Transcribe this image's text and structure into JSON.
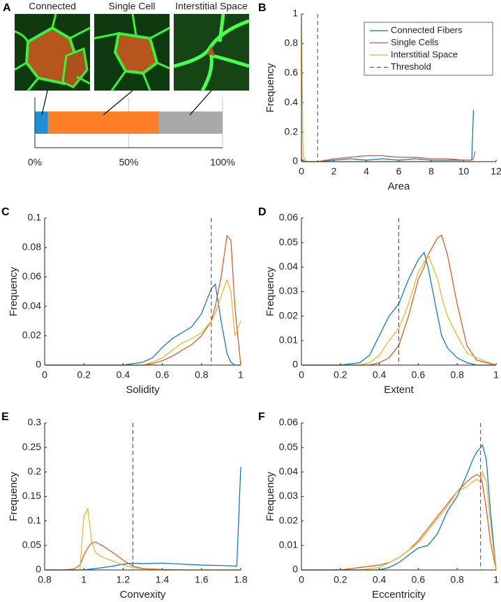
{
  "chart_data": [
    {
      "type": "stacked_bar",
      "panel": "A",
      "categories": [
        "Connected",
        "Single Cell",
        "Interstitial Space"
      ],
      "values": [
        7,
        59,
        34
      ],
      "colors": [
        "#1e90d6",
        "#fd7f28",
        "#a9a9a9"
      ],
      "xlim": [
        0,
        100
      ],
      "xticks": [
        {
          "value": 0,
          "label": "0%"
        },
        {
          "value": 50,
          "label": "50%"
        },
        {
          "value": 100,
          "label": "100%"
        }
      ],
      "grid": true
    },
    {
      "type": "line",
      "panel": "B",
      "xlabel": "Area",
      "ylabel": "Frequency",
      "x": [
        0,
        0.1,
        0.2,
        0.4,
        1,
        2,
        3,
        4,
        5,
        6,
        7,
        8,
        9,
        10,
        10.5,
        10.6,
        10.7
      ],
      "series": [
        {
          "name": "Connected Fibers",
          "color": "#0072bd",
          "values": [
            0.01,
            0.005,
            0,
            0,
            0,
            0.01,
            0.02,
            0.01,
            0.02,
            0.01,
            0.02,
            0.01,
            0.01,
            0.01,
            0.01,
            0.35,
            null
          ]
        },
        {
          "name": "Single Cells",
          "color": "#d95319",
          "values": [
            0.02,
            0.01,
            0,
            0,
            0,
            0.02,
            0.03,
            0.04,
            0.04,
            0.03,
            0.03,
            0.02,
            0.02,
            0.01,
            0.01,
            0.02,
            0.07
          ]
        },
        {
          "name": "Interstitial Space",
          "color": "#edb120",
          "values": [
            0.93,
            0.05,
            0.01,
            0,
            0,
            0,
            0,
            0,
            0,
            0,
            0,
            0,
            0,
            0,
            0,
            0,
            0
          ]
        }
      ],
      "threshold": 1,
      "threshold_label": "Threshold",
      "threshold_color": "#444",
      "xlim": [
        0,
        12
      ],
      "xticks": [
        0,
        2,
        4,
        6,
        8,
        10,
        12
      ],
      "ylim": [
        0,
        1
      ],
      "yticks": [
        0,
        0.2,
        0.4,
        0.6,
        0.8,
        1
      ],
      "legend": "top-right"
    },
    {
      "type": "line",
      "panel": "C",
      "xlabel": "Solidity",
      "ylabel": "Frequency",
      "x": [
        0,
        0.2,
        0.4,
        0.5,
        0.55,
        0.6,
        0.65,
        0.7,
        0.75,
        0.8,
        0.85,
        0.87,
        0.9,
        0.93,
        0.95,
        0.97,
        1
      ],
      "series": [
        {
          "color": "#0072bd",
          "values": [
            0,
            0,
            0,
            0.002,
            0.005,
            0.012,
            0.018,
            0.022,
            0.026,
            0.035,
            0.052,
            0.055,
            0.03,
            0.008,
            0.002,
            0,
            0
          ]
        },
        {
          "color": "#d95319",
          "values": [
            0,
            0,
            0,
            0,
            0.001,
            0.003,
            0.006,
            0.01,
            0.014,
            0.02,
            0.03,
            0.04,
            0.06,
            0.088,
            0.085,
            0.04,
            0
          ]
        },
        {
          "color": "#edb120",
          "values": [
            0,
            0,
            0,
            0,
            0.002,
            0.005,
            0.01,
            0.015,
            0.018,
            0.022,
            0.03,
            0.035,
            0.047,
            0.058,
            0.05,
            0.02,
            0.03
          ]
        }
      ],
      "threshold": 0.85,
      "threshold_color": "#444",
      "xlim": [
        0,
        1
      ],
      "xticks": [
        0,
        0.2,
        0.4,
        0.6,
        0.8,
        1
      ],
      "ylim": [
        0,
        0.1
      ],
      "yticks": [
        0,
        0.02,
        0.04,
        0.06,
        0.08,
        0.1
      ]
    },
    {
      "type": "line",
      "panel": "D",
      "xlabel": "Extent",
      "ylabel": "Frequency",
      "x": [
        0,
        0.2,
        0.3,
        0.35,
        0.4,
        0.45,
        0.5,
        0.55,
        0.6,
        0.63,
        0.65,
        0.7,
        0.72,
        0.75,
        0.8,
        0.85,
        0.9,
        1
      ],
      "series": [
        {
          "color": "#0072bd",
          "values": [
            0,
            0,
            0.001,
            0.004,
            0.012,
            0.02,
            0.025,
            0.035,
            0.043,
            0.046,
            0.04,
            0.02,
            0.012,
            0.007,
            0.003,
            0.001,
            0,
            0
          ]
        },
        {
          "color": "#d95319",
          "values": [
            0,
            0,
            0,
            0,
            0.001,
            0.003,
            0.008,
            0.02,
            0.035,
            0.04,
            0.045,
            0.052,
            0.053,
            0.045,
            0.025,
            0.008,
            0.002,
            0
          ]
        },
        {
          "color": "#edb120",
          "values": [
            0,
            0,
            0,
            0.001,
            0.004,
            0.01,
            0.015,
            0.025,
            0.038,
            0.042,
            0.045,
            0.035,
            0.028,
            0.02,
            0.012,
            0.005,
            0.003,
            0
          ]
        }
      ],
      "threshold": 0.5,
      "threshold_color": "#444",
      "xlim": [
        0,
        1
      ],
      "xticks": [
        0,
        0.2,
        0.4,
        0.6,
        0.8,
        1
      ],
      "ylim": [
        0,
        0.06
      ],
      "yticks": [
        0,
        0.01,
        0.02,
        0.03,
        0.04,
        0.05,
        0.06
      ]
    },
    {
      "type": "line",
      "panel": "E",
      "xlabel": "Convexity",
      "ylabel": "Frequency",
      "x": [
        0.8,
        0.9,
        0.95,
        0.98,
        1.0,
        1.02,
        1.04,
        1.06,
        1.1,
        1.15,
        1.2,
        1.25,
        1.3,
        1.4,
        1.5,
        1.6,
        1.7,
        1.78,
        1.8
      ],
      "series": [
        {
          "color": "#0072bd",
          "values": [
            0,
            0,
            0,
            0,
            0,
            0.001,
            0.002,
            0.003,
            0.005,
            0.008,
            0.012,
            0.014,
            0.013,
            0.014,
            0.012,
            0.01,
            0.009,
            0.008,
            0.21
          ]
        },
        {
          "color": "#d95319",
          "values": [
            0,
            0,
            0.002,
            0.01,
            0.03,
            0.045,
            0.055,
            0.057,
            0.048,
            0.035,
            0.02,
            0.008,
            0.003,
            0.001,
            0,
            0,
            0,
            0,
            0
          ]
        },
        {
          "color": "#edb120",
          "values": [
            0,
            0,
            0,
            0,
            0.11,
            0.125,
            0.06,
            0.035,
            0.025,
            0.018,
            0.01,
            0.005,
            0.002,
            0,
            0,
            0,
            0,
            0,
            0
          ]
        }
      ],
      "threshold": 1.25,
      "threshold_color": "#444",
      "xlim": [
        0.8,
        1.8
      ],
      "xticks": [
        0.8,
        1,
        1.2,
        1.4,
        1.6,
        1.8
      ],
      "ylim": [
        0,
        0.3
      ],
      "yticks": [
        0,
        0.05,
        0.1,
        0.15,
        0.2,
        0.25,
        0.3
      ]
    },
    {
      "type": "line",
      "panel": "F",
      "xlabel": "Eccentricity",
      "ylabel": "Frequency",
      "x": [
        0,
        0.2,
        0.3,
        0.4,
        0.45,
        0.5,
        0.55,
        0.6,
        0.65,
        0.7,
        0.75,
        0.8,
        0.85,
        0.88,
        0.9,
        0.92,
        0.93,
        0.95,
        0.97,
        1
      ],
      "series": [
        {
          "color": "#0072bd",
          "values": [
            0,
            0,
            0,
            0,
            0.001,
            0.003,
            0.006,
            0.009,
            0.01,
            0.015,
            0.024,
            0.03,
            0.039,
            0.045,
            0.048,
            0.05,
            0.051,
            0.045,
            0.025,
            0
          ]
        },
        {
          "color": "#d95319",
          "values": [
            0,
            0,
            0.001,
            0.002,
            0.003,
            0.005,
            0.008,
            0.012,
            0.017,
            0.022,
            0.027,
            0.032,
            0.036,
            0.038,
            0.039,
            0.038,
            0.035,
            0.025,
            0.012,
            0
          ]
        },
        {
          "color": "#edb120",
          "values": [
            0,
            0,
            0,
            0.001,
            0.003,
            0.005,
            0.008,
            0.011,
            0.016,
            0.021,
            0.026,
            0.032,
            0.034,
            0.036,
            0.037,
            0.036,
            0.04,
            0.036,
            0.02,
            0
          ]
        }
      ],
      "threshold": 0.92,
      "threshold_color": "#444",
      "xlim": [
        0,
        1
      ],
      "xticks": [
        0,
        0.2,
        0.4,
        0.6,
        0.8,
        1
      ],
      "ylim": [
        0,
        0.06
      ],
      "yticks": [
        0,
        0.01,
        0.02,
        0.03,
        0.04,
        0.05,
        0.06
      ]
    }
  ]
}
